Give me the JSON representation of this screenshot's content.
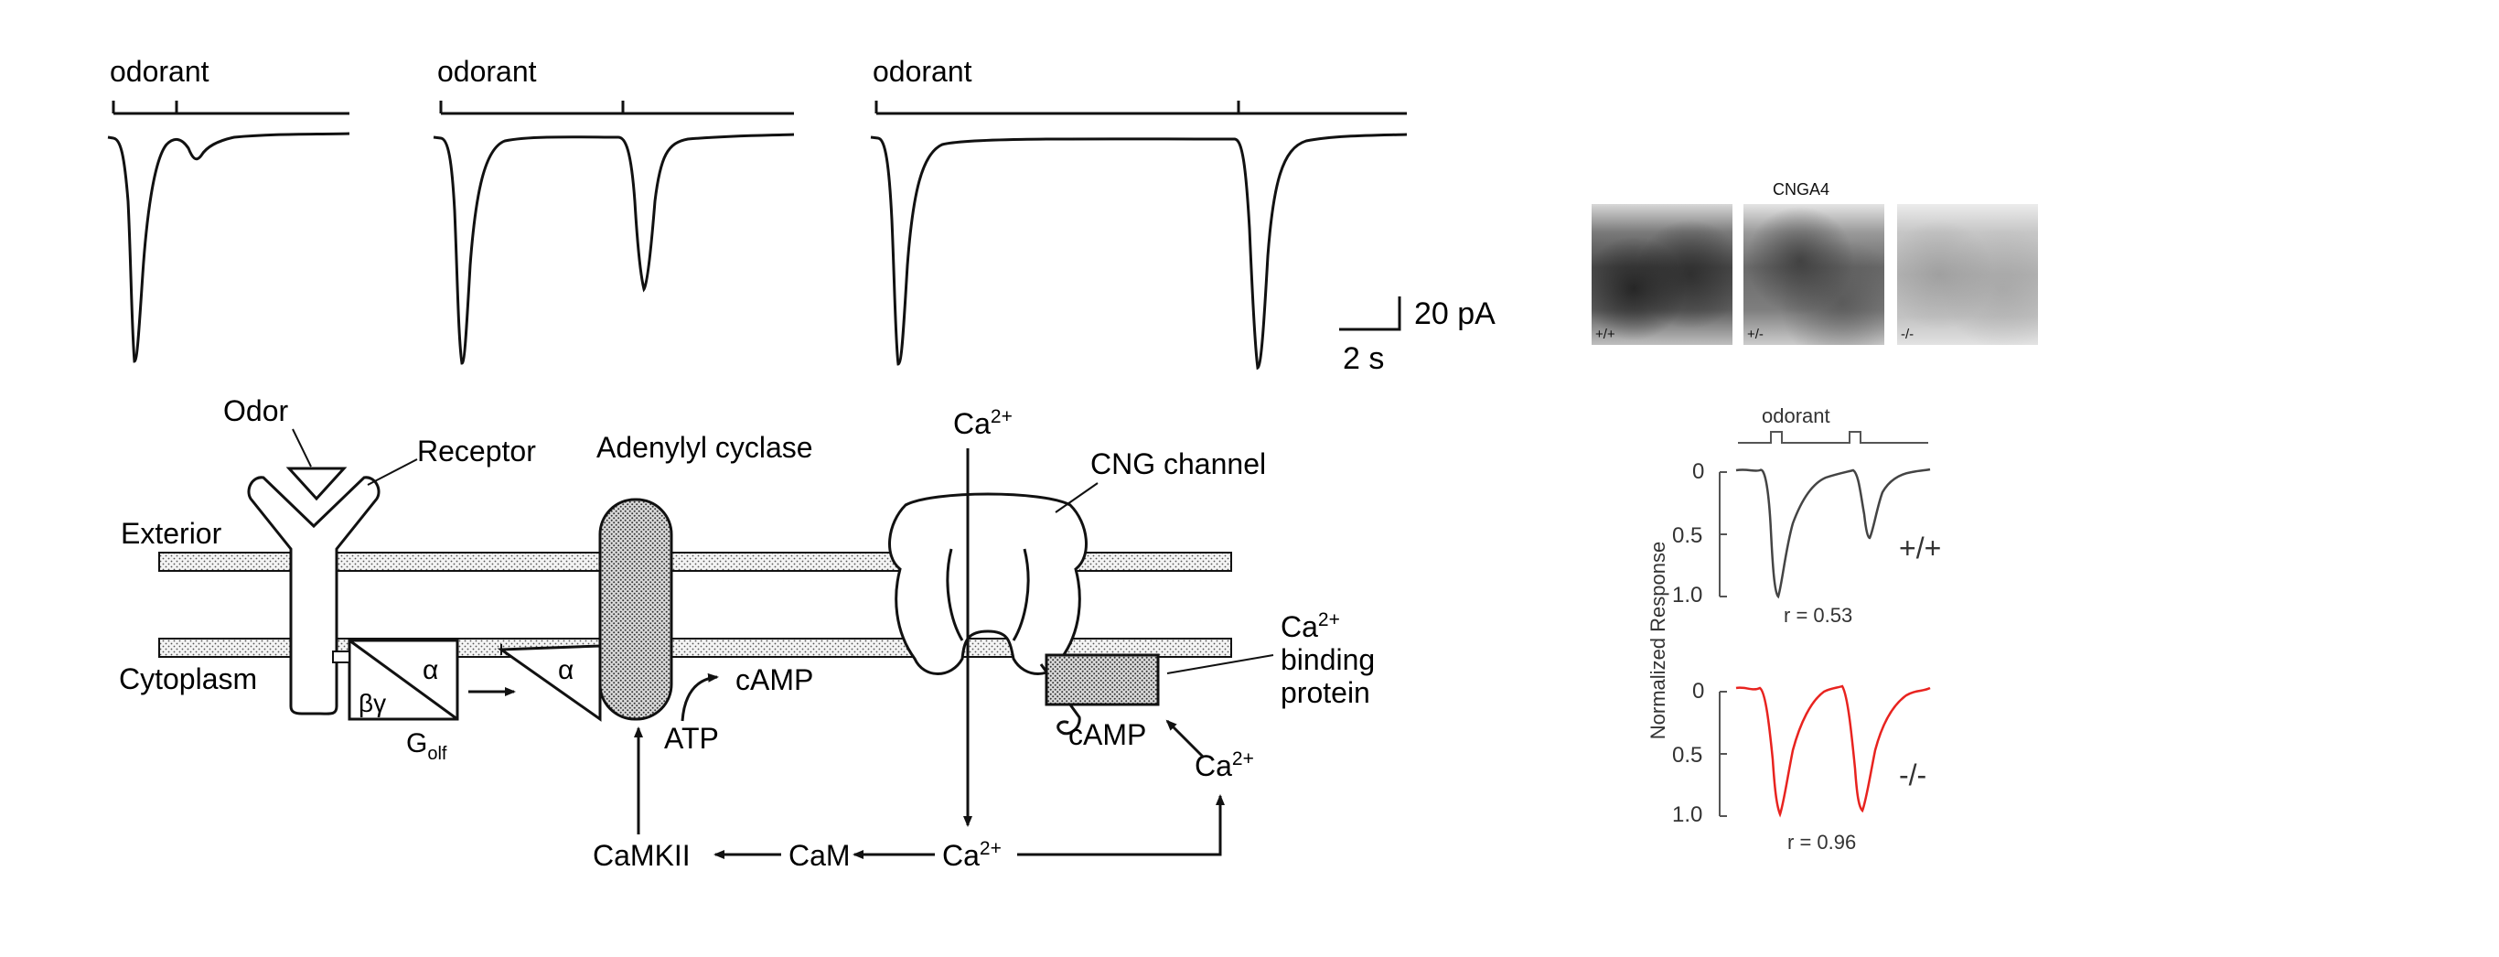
{
  "trace_panel": {
    "stimulus_label": "odorant",
    "scale_bar": {
      "amplitude": "20 pA",
      "time": "2 s"
    }
  },
  "pathway": {
    "odor": "Odor",
    "receptor": "Receptor",
    "adenylyl_cyclase": "Adenylyl cyclase",
    "cng_channel": "CNG channel",
    "exterior": "Exterior",
    "cytoplasm": "Cytoplasm",
    "alpha": "α",
    "beta_gamma": "βγ",
    "golf_main": "G",
    "golf_sub": "olf",
    "camp": "cAMP",
    "atp": "ATP",
    "calcium": "Ca",
    "calcium_charge": "2+",
    "binding_protein_line1": "binding",
    "binding_protein_line2": "protein",
    "camkii": "CaMKII",
    "cam": "CaM"
  },
  "cnga4_panel": {
    "title": "CNGA4",
    "genotypes": [
      "+/+",
      "+/-",
      "-/-"
    ]
  },
  "normalized_panel": {
    "stimulus_label": "odorant",
    "y_axis_label": "Normalized Response",
    "y_ticks": [
      "0",
      "0.5",
      "1.0"
    ],
    "wildtype": {
      "genotype": "+/+",
      "r_label": "r = 0.53",
      "color": "#444444"
    },
    "knockout": {
      "genotype": "-/-",
      "r_label": "r = 0.96",
      "color": "#e8231f"
    }
  }
}
